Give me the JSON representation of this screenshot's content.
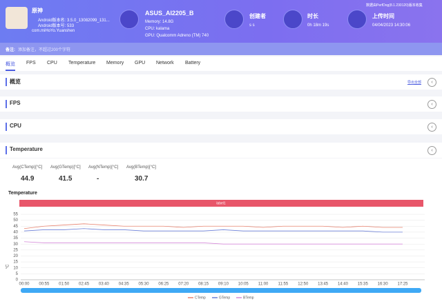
{
  "header": {
    "app_name": "原神",
    "android_version_name": "Android版本名: 3.5.0_13082099_131...",
    "android_version_code": "Android版本号: 533",
    "package": "com.miHoYo.Yuanshen",
    "device": "ASUS_AI2205_B",
    "memory": "Memory: 14.8G",
    "cpu": "CPU: kalama",
    "gpu": "GPU: Qualcomm Adreno (TM) 740",
    "creator_label": "创建者",
    "creator_value": "s s",
    "duration_label": "时长",
    "duration_value": "0h 18m 19s",
    "upload_label": "上传时间",
    "upload_value": "04/04/2023 14:30:06",
    "collector": "数据由PerfDog(8.1.230120)版本收集"
  },
  "note": {
    "label": "备注:",
    "placeholder": "添加备注，不超过200个字符"
  },
  "tabs": [
    "概览",
    "FPS",
    "CPU",
    "Temperature",
    "Memory",
    "GPU",
    "Network",
    "Battery"
  ],
  "sections": [
    "概览",
    "FPS",
    "CPU",
    "Temperature"
  ],
  "overview_action": "导出全部",
  "stats": [
    {
      "label": "Avg(CTemp)[°C]",
      "value": "44.9"
    },
    {
      "label": "Avg(GTemp)[°C]",
      "value": "41.5"
    },
    {
      "label": "Avg(NTemp)[°C]",
      "value": "-"
    },
    {
      "label": "Avg(BTemp)[°C]",
      "value": "30.7"
    }
  ],
  "chart_data": {
    "type": "line",
    "title": "Temperature",
    "annotation": "label1",
    "ylabel": "°C",
    "x": [
      "00:00",
      "00:55",
      "01:50",
      "02:45",
      "03:40",
      "04:35",
      "05:30",
      "06:25",
      "07:20",
      "08:15",
      "09:10",
      "10:05",
      "11:00",
      "11:55",
      "12:50",
      "13:45",
      "14:40",
      "15:35",
      "16:30",
      "17:25"
    ],
    "ylim": [
      0,
      55
    ],
    "yticks": [
      0,
      5,
      10,
      15,
      20,
      25,
      30,
      35,
      40,
      45,
      50,
      55
    ],
    "grid": true,
    "series": [
      {
        "name": "CTemp",
        "color": "#e8826e",
        "values": [
          43,
          45,
          46,
          47,
          46,
          45,
          45,
          45,
          44,
          45,
          45,
          45,
          44,
          45,
          45,
          45,
          44,
          45,
          44,
          44
        ]
      },
      {
        "name": "GTemp",
        "color": "#6b7fd7",
        "values": [
          41,
          42,
          42,
          43,
          42,
          42,
          41,
          41,
          41,
          41,
          42,
          41,
          41,
          41,
          41,
          41,
          41,
          41,
          40,
          40
        ]
      },
      {
        "name": "BTemp",
        "color": "#d58ad9",
        "values": [
          32,
          31,
          31,
          31,
          31,
          31,
          31,
          31,
          31,
          31,
          30,
          30,
          30,
          30,
          30,
          30,
          30,
          30,
          30,
          30
        ]
      }
    ]
  }
}
